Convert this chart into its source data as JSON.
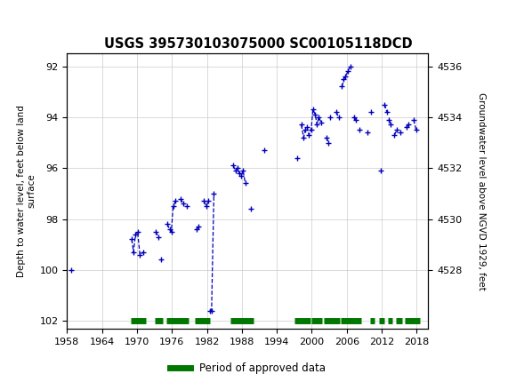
{
  "title": "USGS 395730103075000 SC00105118DCD",
  "ylabel_left": "Depth to water level, feet below land\nsurface",
  "ylabel_right": "Groundwater level above NGVD 1929, feet",
  "header_color": "#1a6b3c",
  "ylim_left": [
    91.5,
    102.3
  ],
  "yticks_left": [
    92.0,
    94.0,
    96.0,
    98.0,
    100.0,
    102.0
  ],
  "yticks_right": [
    4528.0,
    4530.0,
    4532.0,
    4534.0,
    4536.0
  ],
  "xlim": [
    1958,
    2020
  ],
  "xticks": [
    1958,
    1964,
    1970,
    1976,
    1982,
    1988,
    1994,
    2000,
    2006,
    2012,
    2018
  ],
  "line_color": "#0000bb",
  "period_color": "#007700",
  "background_color": "#ffffff",
  "grid_color": "#cccccc",
  "land_elev": 4628.0,
  "data_segments": [
    {
      "x": [
        1958.75
      ],
      "y": [
        100.0
      ]
    },
    {
      "x": [
        1969.1,
        1969.4,
        1969.75,
        1970.1,
        1970.5,
        1971.1
      ],
      "y": [
        98.8,
        99.3,
        98.6,
        98.5,
        99.4,
        99.3
      ]
    },
    {
      "x": [
        1973.2,
        1973.7
      ],
      "y": [
        98.5,
        98.7
      ]
    },
    {
      "x": [
        1974.2
      ],
      "y": [
        99.6
      ]
    },
    {
      "x": [
        1975.2,
        1975.6,
        1975.9,
        1976.2,
        1976.6
      ],
      "y": [
        98.2,
        98.4,
        98.5,
        97.5,
        97.3
      ]
    },
    {
      "x": [
        1977.5,
        1977.9
      ],
      "y": [
        97.2,
        97.4
      ]
    },
    {
      "x": [
        1978.5
      ],
      "y": [
        97.5
      ]
    },
    {
      "x": [
        1980.2,
        1980.6
      ],
      "y": [
        98.4,
        98.3
      ]
    },
    {
      "x": [
        1981.5,
        1981.9,
        1982.2
      ],
      "y": [
        97.3,
        97.5,
        97.3
      ]
    },
    {
      "x": [
        1982.5,
        1982.8,
        1983.2
      ],
      "y": [
        101.6,
        101.6,
        97.0
      ]
    },
    {
      "x": [
        1986.5,
        1986.9,
        1987.2,
        1987.6,
        1987.9,
        1988.2,
        1988.6
      ],
      "y": [
        95.9,
        96.1,
        96.0,
        96.2,
        96.3,
        96.1,
        96.6
      ]
    },
    {
      "x": [
        1989.5
      ],
      "y": [
        97.6
      ]
    },
    {
      "x": [
        1991.8
      ],
      "y": [
        95.3
      ]
    },
    {
      "x": [
        1997.5
      ],
      "y": [
        95.6
      ]
    },
    {
      "x": [
        1998.2,
        1998.6,
        1998.9,
        1999.2,
        1999.5,
        1999.9,
        2000.2,
        2000.6,
        2000.9,
        2001.2,
        2001.6
      ],
      "y": [
        94.3,
        94.8,
        94.5,
        94.4,
        94.7,
        94.5,
        93.7,
        93.9,
        94.3,
        94.0,
        94.2
      ]
    },
    {
      "x": [
        2002.5,
        2002.9
      ],
      "y": [
        94.8,
        95.0
      ]
    },
    {
      "x": [
        2003.2
      ],
      "y": [
        94.0
      ]
    },
    {
      "x": [
        2004.2,
        2004.6
      ],
      "y": [
        93.8,
        94.0
      ]
    },
    {
      "x": [
        2005.2,
        2005.5,
        2005.8,
        2006.2,
        2006.6
      ],
      "y": [
        92.8,
        92.5,
        92.4,
        92.2,
        92.0
      ]
    },
    {
      "x": [
        2007.2,
        2007.6
      ],
      "y": [
        94.0,
        94.1
      ]
    },
    {
      "x": [
        2008.2
      ],
      "y": [
        94.5
      ]
    },
    {
      "x": [
        2009.5
      ],
      "y": [
        94.6
      ]
    },
    {
      "x": [
        2010.2
      ],
      "y": [
        93.8
      ]
    },
    {
      "x": [
        2011.8
      ],
      "y": [
        96.1
      ]
    },
    {
      "x": [
        2012.5,
        2012.9
      ],
      "y": [
        93.5,
        93.8
      ]
    },
    {
      "x": [
        2013.2,
        2013.6
      ],
      "y": [
        94.1,
        94.3
      ]
    },
    {
      "x": [
        2014.2,
        2014.6
      ],
      "y": [
        94.7,
        94.5
      ]
    },
    {
      "x": [
        2015.2
      ],
      "y": [
        94.6
      ]
    },
    {
      "x": [
        2016.2,
        2016.6
      ],
      "y": [
        94.4,
        94.3
      ]
    },
    {
      "x": [
        2017.5,
        2017.9
      ],
      "y": [
        94.1,
        94.5
      ]
    }
  ],
  "period_segments": [
    [
      1969.0,
      1971.5
    ],
    [
      1973.0,
      1974.5
    ],
    [
      1975.0,
      1978.8
    ],
    [
      1980.0,
      1982.5
    ],
    [
      1986.0,
      1990.0
    ],
    [
      1997.0,
      1999.8
    ],
    [
      2000.0,
      2001.8
    ],
    [
      2002.0,
      2004.8
    ],
    [
      2005.0,
      2008.5
    ],
    [
      2010.0,
      2010.8
    ],
    [
      2011.5,
      2012.5
    ],
    [
      2013.0,
      2013.8
    ],
    [
      2014.5,
      2015.5
    ],
    [
      2016.0,
      2018.5
    ]
  ],
  "legend_label": "Period of approved data"
}
